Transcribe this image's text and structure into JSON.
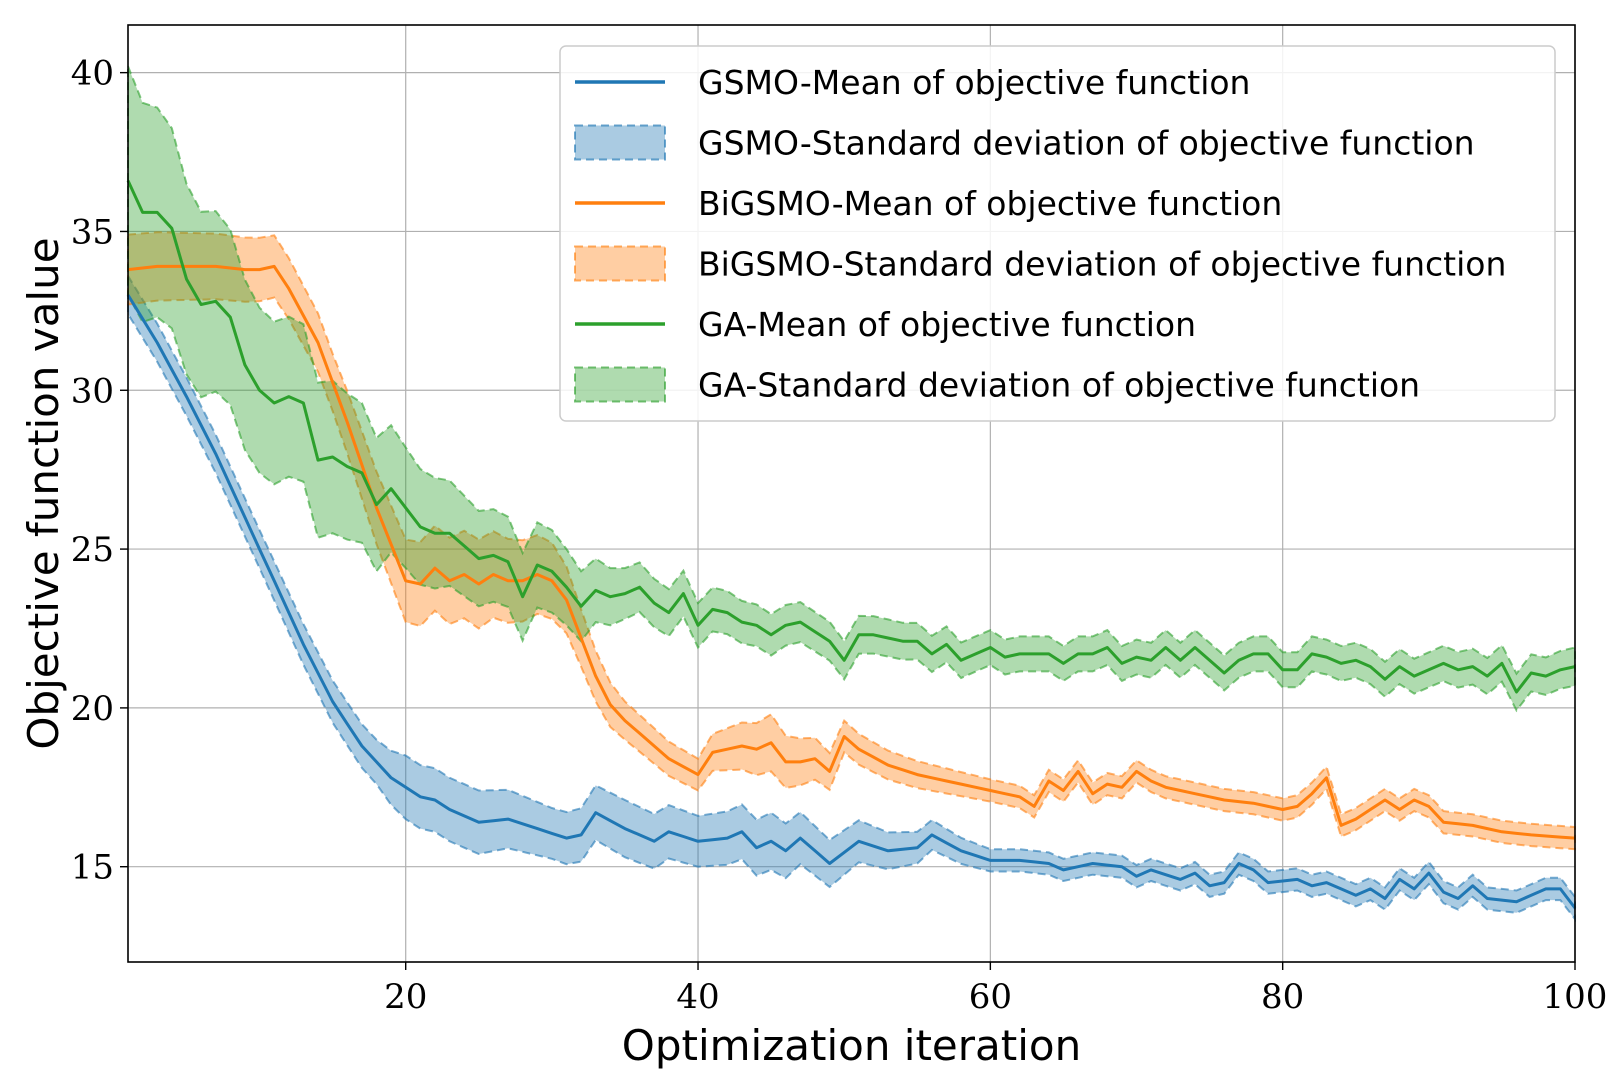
{
  "chart_data": {
    "type": "line",
    "xlabel": "Optimization iteration",
    "ylabel": "Objective function value",
    "xlim": [
      1,
      100
    ],
    "ylim": [
      12,
      41.5
    ],
    "xticks": [
      20,
      40,
      60,
      80,
      100
    ],
    "yticks": [
      15,
      20,
      25,
      30,
      35,
      40
    ],
    "grid": true,
    "legend_position": "top-right",
    "legend": [
      {
        "label": "GSMO-Mean of objective function",
        "kind": "line",
        "color": "#1f77b4"
      },
      {
        "label": "GSMO-Standard deviation of objective function",
        "kind": "band",
        "color": "#1f77b4"
      },
      {
        "label": "BiGSMO-Mean of objective function",
        "kind": "line",
        "color": "#ff7f0e"
      },
      {
        "label": "BiGSMO-Standard deviation of objective function",
        "kind": "band",
        "color": "#ff7f0e"
      },
      {
        "label": "GA-Mean of objective function",
        "kind": "line",
        "color": "#2ca02c"
      },
      {
        "label": "GA-Standard deviation of objective function",
        "kind": "band",
        "color": "#2ca02c"
      }
    ],
    "series": [
      {
        "name": "GSMO",
        "color": "#1f77b4",
        "mean_points": [
          [
            1,
            33.0
          ],
          [
            3,
            31.5
          ],
          [
            5,
            29.8
          ],
          [
            7,
            28.0
          ],
          [
            9,
            26.0
          ],
          [
            11,
            24.0
          ],
          [
            13,
            22.0
          ],
          [
            15,
            20.2
          ],
          [
            17,
            18.8
          ],
          [
            19,
            17.8
          ],
          [
            21,
            17.2
          ],
          [
            22,
            17.1
          ],
          [
            23,
            16.8
          ],
          [
            25,
            16.4
          ],
          [
            27,
            16.5
          ],
          [
            29,
            16.2
          ],
          [
            31,
            15.9
          ],
          [
            32,
            16.0
          ],
          [
            33,
            16.7
          ],
          [
            35,
            16.2
          ],
          [
            37,
            15.8
          ],
          [
            38,
            16.1
          ],
          [
            40,
            15.8
          ],
          [
            42,
            15.9
          ],
          [
            43,
            16.1
          ],
          [
            44,
            15.6
          ],
          [
            45,
            15.8
          ],
          [
            46,
            15.5
          ],
          [
            47,
            15.9
          ],
          [
            49,
            15.1
          ],
          [
            51,
            15.8
          ],
          [
            53,
            15.5
          ],
          [
            55,
            15.6
          ],
          [
            56,
            16.0
          ],
          [
            58,
            15.5
          ],
          [
            60,
            15.2
          ],
          [
            62,
            15.2
          ],
          [
            64,
            15.1
          ],
          [
            65,
            14.9
          ],
          [
            67,
            15.1
          ],
          [
            69,
            15.0
          ],
          [
            70,
            14.7
          ],
          [
            71,
            14.9
          ],
          [
            73,
            14.6
          ],
          [
            74,
            14.8
          ],
          [
            75,
            14.4
          ],
          [
            76,
            14.5
          ],
          [
            77,
            15.1
          ],
          [
            78,
            14.9
          ],
          [
            79,
            14.5
          ],
          [
            81,
            14.6
          ],
          [
            82,
            14.4
          ],
          [
            83,
            14.5
          ],
          [
            84,
            14.3
          ],
          [
            85,
            14.1
          ],
          [
            86,
            14.3
          ],
          [
            87,
            14.0
          ],
          [
            88,
            14.6
          ],
          [
            89,
            14.3
          ],
          [
            90,
            14.8
          ],
          [
            91,
            14.2
          ],
          [
            92,
            14.0
          ],
          [
            93,
            14.4
          ],
          [
            94,
            14.0
          ],
          [
            96,
            13.9
          ],
          [
            97,
            14.1
          ],
          [
            98,
            14.3
          ],
          [
            99,
            14.3
          ],
          [
            100,
            13.7
          ]
        ],
        "band_width_points": [
          [
            1,
            0.6
          ],
          [
            10,
            0.6
          ],
          [
            18,
            0.7
          ],
          [
            20,
            1.0
          ],
          [
            25,
            1.0
          ],
          [
            30,
            0.8
          ],
          [
            35,
            0.9
          ],
          [
            40,
            0.8
          ],
          [
            45,
            0.9
          ],
          [
            50,
            0.7
          ],
          [
            55,
            0.5
          ],
          [
            60,
            0.35
          ],
          [
            70,
            0.35
          ],
          [
            80,
            0.35
          ],
          [
            90,
            0.35
          ],
          [
            100,
            0.35
          ]
        ]
      },
      {
        "name": "BiGSMO",
        "color": "#ff7f0e",
        "mean_points": [
          [
            1,
            33.8
          ],
          [
            3,
            33.9
          ],
          [
            5,
            33.9
          ],
          [
            7,
            33.9
          ],
          [
            9,
            33.8
          ],
          [
            10,
            33.8
          ],
          [
            11,
            33.9
          ],
          [
            12,
            33.2
          ],
          [
            14,
            31.5
          ],
          [
            16,
            29.0
          ],
          [
            18,
            26.3
          ],
          [
            20,
            24.0
          ],
          [
            21,
            23.9
          ],
          [
            22,
            24.4
          ],
          [
            23,
            24.0
          ],
          [
            24,
            24.2
          ],
          [
            25,
            23.9
          ],
          [
            26,
            24.2
          ],
          [
            27,
            24.0
          ],
          [
            28,
            24.0
          ],
          [
            29,
            24.2
          ],
          [
            30,
            24.0
          ],
          [
            31,
            23.4
          ],
          [
            32,
            22.2
          ],
          [
            33,
            21.0
          ],
          [
            34,
            20.1
          ],
          [
            35,
            19.6
          ],
          [
            36,
            19.2
          ],
          [
            38,
            18.4
          ],
          [
            40,
            17.9
          ],
          [
            41,
            18.6
          ],
          [
            43,
            18.8
          ],
          [
            44,
            18.7
          ],
          [
            45,
            18.9
          ],
          [
            46,
            18.3
          ],
          [
            47,
            18.3
          ],
          [
            48,
            18.4
          ],
          [
            49,
            18.0
          ],
          [
            50,
            19.1
          ],
          [
            51,
            18.7
          ],
          [
            53,
            18.2
          ],
          [
            55,
            17.9
          ],
          [
            57,
            17.7
          ],
          [
            59,
            17.5
          ],
          [
            61,
            17.3
          ],
          [
            62,
            17.2
          ],
          [
            63,
            16.9
          ],
          [
            64,
            17.7
          ],
          [
            65,
            17.4
          ],
          [
            66,
            18.0
          ],
          [
            67,
            17.3
          ],
          [
            68,
            17.6
          ],
          [
            69,
            17.5
          ],
          [
            70,
            18.0
          ],
          [
            71,
            17.7
          ],
          [
            72,
            17.5
          ],
          [
            74,
            17.3
          ],
          [
            76,
            17.1
          ],
          [
            78,
            17.0
          ],
          [
            80,
            16.8
          ],
          [
            81,
            16.9
          ],
          [
            82,
            17.3
          ],
          [
            83,
            17.8
          ],
          [
            84,
            16.3
          ],
          [
            85,
            16.5
          ],
          [
            87,
            17.1
          ],
          [
            88,
            16.8
          ],
          [
            89,
            17.1
          ],
          [
            90,
            16.9
          ],
          [
            91,
            16.4
          ],
          [
            93,
            16.3
          ],
          [
            95,
            16.1
          ],
          [
            97,
            16.0
          ],
          [
            100,
            15.9
          ]
        ],
        "band_width_points": [
          [
            1,
            1.1
          ],
          [
            10,
            1.0
          ],
          [
            15,
            0.9
          ],
          [
            20,
            1.3
          ],
          [
            25,
            1.4
          ],
          [
            30,
            1.2
          ],
          [
            32,
            0.9
          ],
          [
            35,
            0.6
          ],
          [
            40,
            0.5
          ],
          [
            45,
            0.9
          ],
          [
            50,
            0.5
          ],
          [
            60,
            0.35
          ],
          [
            70,
            0.35
          ],
          [
            80,
            0.35
          ],
          [
            90,
            0.35
          ],
          [
            100,
            0.35
          ]
        ]
      },
      {
        "name": "GA",
        "color": "#2ca02c",
        "mean_points": [
          [
            1,
            36.6
          ],
          [
            2,
            35.6
          ],
          [
            3,
            35.6
          ],
          [
            4,
            35.1
          ],
          [
            5,
            33.5
          ],
          [
            6,
            32.7
          ],
          [
            7,
            32.8
          ],
          [
            8,
            32.3
          ],
          [
            9,
            30.8
          ],
          [
            10,
            30.0
          ],
          [
            11,
            29.6
          ],
          [
            12,
            29.8
          ],
          [
            13,
            29.6
          ],
          [
            14,
            27.8
          ],
          [
            15,
            27.9
          ],
          [
            16,
            27.6
          ],
          [
            17,
            27.4
          ],
          [
            18,
            26.4
          ],
          [
            19,
            26.9
          ],
          [
            20,
            26.3
          ],
          [
            21,
            25.7
          ],
          [
            22,
            25.5
          ],
          [
            23,
            25.5
          ],
          [
            24,
            25.1
          ],
          [
            25,
            24.7
          ],
          [
            26,
            24.8
          ],
          [
            27,
            24.6
          ],
          [
            28,
            23.5
          ],
          [
            29,
            24.5
          ],
          [
            30,
            24.3
          ],
          [
            31,
            23.8
          ],
          [
            32,
            23.2
          ],
          [
            33,
            23.7
          ],
          [
            34,
            23.5
          ],
          [
            35,
            23.6
          ],
          [
            36,
            23.8
          ],
          [
            37,
            23.3
          ],
          [
            38,
            23.0
          ],
          [
            39,
            23.6
          ],
          [
            40,
            22.6
          ],
          [
            41,
            23.1
          ],
          [
            42,
            23.0
          ],
          [
            43,
            22.7
          ],
          [
            44,
            22.6
          ],
          [
            45,
            22.3
          ],
          [
            46,
            22.6
          ],
          [
            47,
            22.7
          ],
          [
            48,
            22.4
          ],
          [
            49,
            22.1
          ],
          [
            50,
            21.5
          ],
          [
            51,
            22.3
          ],
          [
            52,
            22.3
          ],
          [
            53,
            22.2
          ],
          [
            54,
            22.1
          ],
          [
            55,
            22.1
          ],
          [
            56,
            21.7
          ],
          [
            57,
            22.0
          ],
          [
            58,
            21.5
          ],
          [
            59,
            21.7
          ],
          [
            60,
            21.9
          ],
          [
            61,
            21.6
          ],
          [
            62,
            21.7
          ],
          [
            63,
            21.7
          ],
          [
            64,
            21.7
          ],
          [
            65,
            21.4
          ],
          [
            66,
            21.7
          ],
          [
            67,
            21.7
          ],
          [
            68,
            21.9
          ],
          [
            69,
            21.4
          ],
          [
            70,
            21.6
          ],
          [
            71,
            21.5
          ],
          [
            72,
            21.9
          ],
          [
            73,
            21.5
          ],
          [
            74,
            21.9
          ],
          [
            75,
            21.5
          ],
          [
            76,
            21.1
          ],
          [
            77,
            21.5
          ],
          [
            78,
            21.7
          ],
          [
            79,
            21.7
          ],
          [
            80,
            21.2
          ],
          [
            81,
            21.2
          ],
          [
            82,
            21.7
          ],
          [
            83,
            21.6
          ],
          [
            84,
            21.4
          ],
          [
            85,
            21.5
          ],
          [
            86,
            21.3
          ],
          [
            87,
            20.9
          ],
          [
            88,
            21.3
          ],
          [
            89,
            21.0
          ],
          [
            90,
            21.2
          ],
          [
            91,
            21.4
          ],
          [
            92,
            21.2
          ],
          [
            93,
            21.3
          ],
          [
            94,
            21.0
          ],
          [
            95,
            21.4
          ],
          [
            96,
            20.5
          ],
          [
            97,
            21.1
          ],
          [
            98,
            21.0
          ],
          [
            99,
            21.2
          ],
          [
            100,
            21.3
          ]
        ],
        "band_width_points": [
          [
            1,
            3.6
          ],
          [
            5,
            3.0
          ],
          [
            10,
            2.6
          ],
          [
            15,
            2.4
          ],
          [
            20,
            1.9
          ],
          [
            25,
            1.5
          ],
          [
            30,
            1.3
          ],
          [
            35,
            0.8
          ],
          [
            40,
            0.7
          ],
          [
            50,
            0.6
          ],
          [
            60,
            0.55
          ],
          [
            70,
            0.55
          ],
          [
            80,
            0.55
          ],
          [
            90,
            0.55
          ],
          [
            100,
            0.6
          ]
        ]
      }
    ]
  }
}
